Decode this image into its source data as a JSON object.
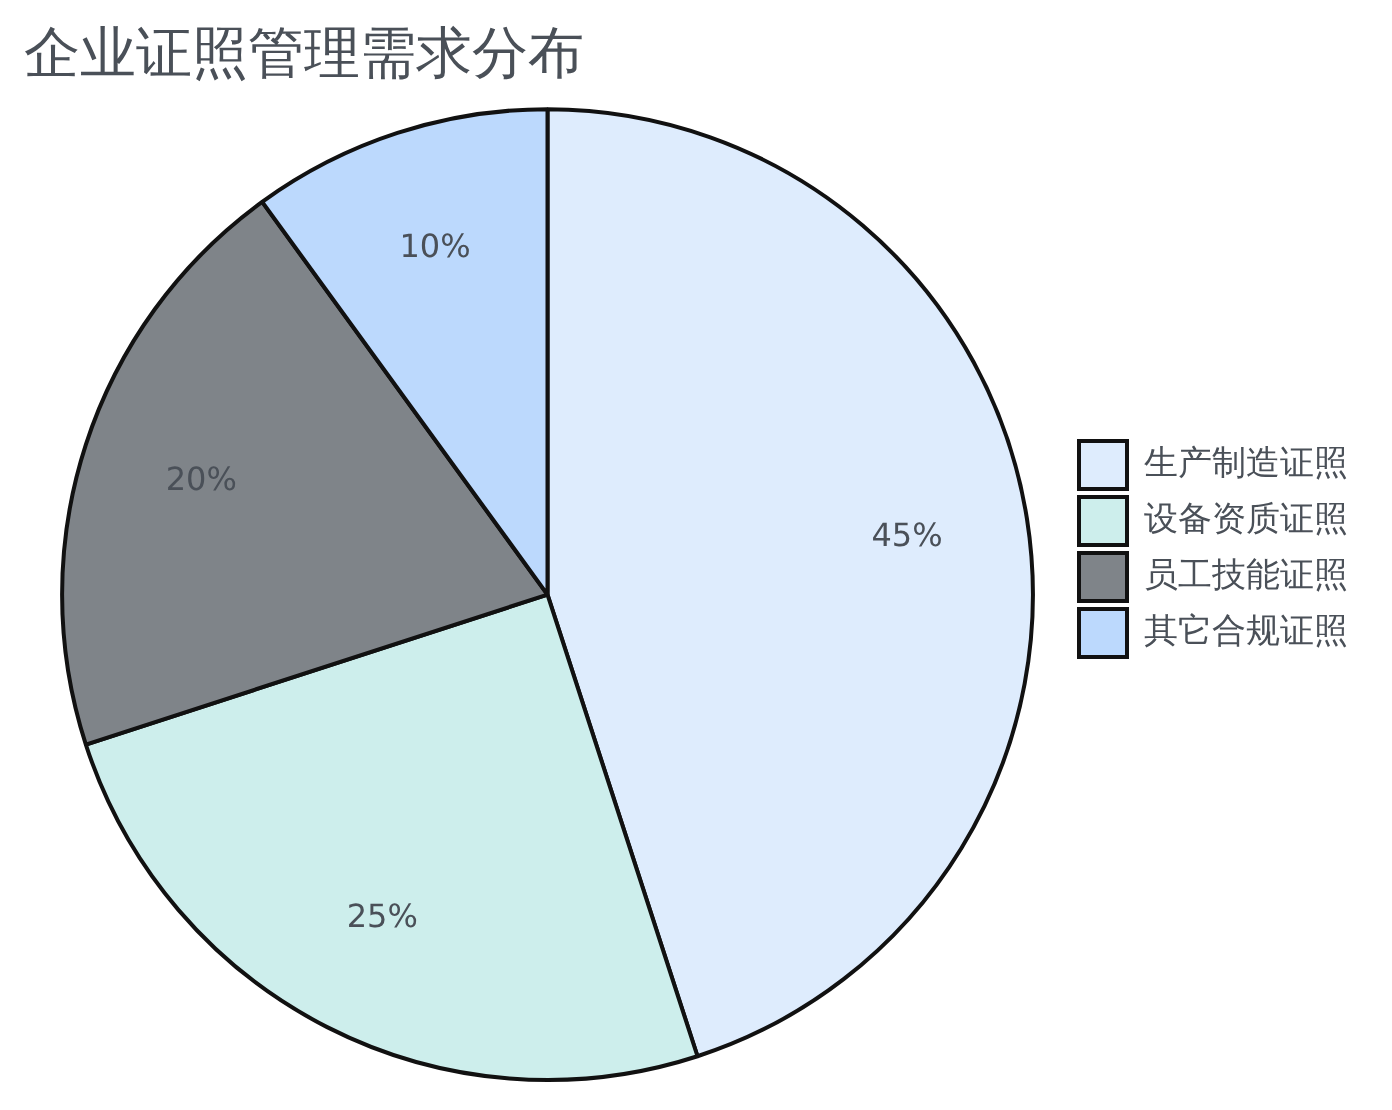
{
  "chart_data": {
    "type": "pie",
    "title": "企业证照管理需求分布",
    "categories": [
      "生产制造证照",
      "设备资质证照",
      "员工技能证照",
      "其它合规证照"
    ],
    "values": [
      45,
      25,
      20,
      10
    ],
    "value_labels": [
      "45%",
      "25%",
      "20%",
      "10%"
    ],
    "colors": [
      "#deecfd",
      "#cdeeec",
      "#7f8489",
      "#bcd9fd"
    ],
    "legend": "right"
  }
}
